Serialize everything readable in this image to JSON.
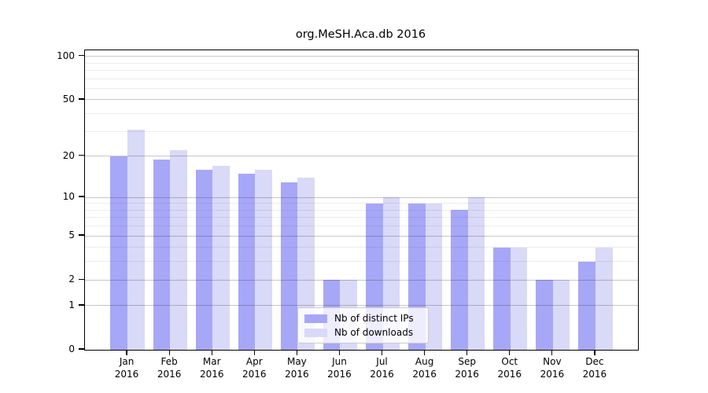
{
  "title": "org.MeSH.Aca.db 2016",
  "chart_data": {
    "type": "bar",
    "categories": [
      "Jan",
      "Feb",
      "Mar",
      "Apr",
      "May",
      "Jun",
      "Jul",
      "Aug",
      "Sep",
      "Oct",
      "Nov",
      "Dec"
    ],
    "year_label": "2016",
    "series": [
      {
        "name": "Nb of distinct IPs",
        "color": "#a7a7f7",
        "values": [
          20,
          19,
          16,
          15,
          13,
          2,
          9,
          9,
          8,
          4,
          2,
          3
        ]
      },
      {
        "name": "Nb of downloads",
        "color": "#d9d9f8",
        "values": [
          31,
          22,
          17,
          16,
          14,
          2,
          10,
          9,
          10,
          4,
          2,
          4
        ]
      }
    ],
    "yscale": "log1p",
    "ylim": [
      0,
      110
    ],
    "yticks": [
      0,
      1,
      2,
      5,
      10,
      20,
      50,
      100
    ],
    "yticks_minor": [
      3,
      4,
      6,
      7,
      8,
      9,
      30,
      40,
      60,
      70,
      80,
      90
    ],
    "grid": true,
    "legend_position": "lower-center",
    "colors": {
      "axis": "#000000",
      "major_grid": "#c6c6c6",
      "minor_grid": "#ededed"
    }
  }
}
